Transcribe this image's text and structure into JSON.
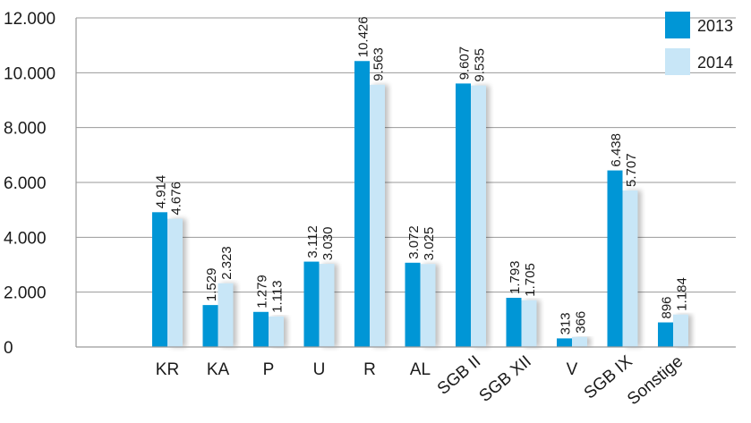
{
  "chart_data": {
    "type": "bar",
    "categories": [
      "KR",
      "KA",
      "P",
      "U",
      "R",
      "AL",
      "SGB II",
      "SGB XII",
      "V",
      "SGB IX",
      "Sonstige"
    ],
    "series": [
      {
        "name": "2013",
        "values": [
          4914,
          1529,
          1279,
          3112,
          10426,
          3072,
          9607,
          1793,
          313,
          6438,
          896
        ],
        "labels": [
          "4.914",
          "1.529",
          "1.279",
          "3.112",
          "10.426",
          "3.072",
          "9.607",
          "1.793",
          "313",
          "6.438",
          "896"
        ]
      },
      {
        "name": "2014",
        "values": [
          4676,
          2323,
          1113,
          3030,
          9563,
          3025,
          9535,
          1705,
          366,
          5707,
          1184
        ],
        "labels": [
          "4.676",
          "2.323",
          "1.113",
          "3.030",
          "9.563",
          "3.025",
          "9.535",
          "1.705",
          "366",
          "5.707",
          "1.184"
        ]
      }
    ],
    "ylim": [
      0,
      12000
    ],
    "yticks": [
      0,
      2000,
      4000,
      6000,
      8000,
      10000,
      12000
    ],
    "ytick_labels": [
      "0",
      "2.000",
      "4.000",
      "6.000",
      "8.000",
      "10.000",
      "12.000"
    ],
    "rotated_categories": [
      "SGB II",
      "SGB XII",
      "SGB IX",
      "Sonstige"
    ],
    "grid": true,
    "legend_position": "top-right",
    "colors": {
      "series_2013": "#0096d6",
      "series_2014": "#c8e6f7",
      "grid": "#9a9a9a",
      "axis": "#9a9a9a"
    }
  }
}
